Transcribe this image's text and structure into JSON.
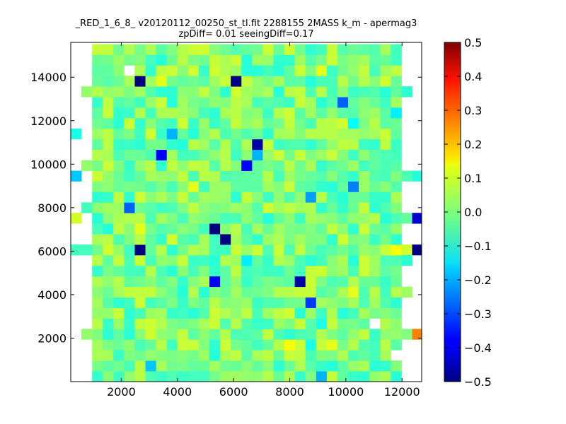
{
  "chart_data": {
    "type": "heatmap",
    "title": "_RED_1_6_8_ v20120112_00250_st_tl.fit 2288155 2MASS k_m - apermag3",
    "subtitle": "zpDiff= 0.01 seeingDiff=0.17",
    "xlabel": "",
    "ylabel": "",
    "xlim": [
      200,
      12700
    ],
    "ylim": [
      0,
      15600
    ],
    "xticks": [
      "2000",
      "4000",
      "6000",
      "8000",
      "10000",
      "12000"
    ],
    "yticks": [
      "2000",
      "4000",
      "6000",
      "8000",
      "10000",
      "12000",
      "14000"
    ],
    "colorbar": {
      "colormap": "jet",
      "range": [
        -0.5,
        0.5
      ],
      "ticks": [
        "0.5",
        "0.4",
        "0.3",
        "0.2",
        "0.1",
        "0.0",
        "−0.1",
        "−0.2",
        "−0.3",
        "−0.4",
        "−0.5"
      ]
    },
    "grid_spec": {
      "cols": 33,
      "rows": 32,
      "x_start": 200,
      "cell_w": 380,
      "cell_h": 485,
      "col_range_default": [
        2,
        30
      ],
      "missing_cells": [
        [
          29,
          5
        ],
        [
          2,
          30
        ],
        [
          5,
          28
        ]
      ]
    },
    "extra_cells": [
      {
        "row": 27,
        "col": 1,
        "value": 0.02
      },
      {
        "row": 27,
        "col": 31,
        "value": -0.08
      },
      {
        "row": 23,
        "col": 0,
        "value": -0.1
      },
      {
        "row": 23,
        "col": 30,
        "value": -0.03
      },
      {
        "row": 20,
        "col": 1,
        "value": 0.02
      },
      {
        "row": 20,
        "col": 30,
        "value": -0.04
      },
      {
        "row": 19,
        "col": 0,
        "value": -0.18
      },
      {
        "row": 19,
        "col": 30,
        "value": 0.0
      },
      {
        "row": 19,
        "col": 31,
        "value": -0.05
      },
      {
        "row": 19,
        "col": 32,
        "value": -0.09
      },
      {
        "row": 16,
        "col": 1,
        "value": -0.06
      },
      {
        "row": 15,
        "col": 0,
        "value": 0.08
      },
      {
        "row": 15,
        "col": 30,
        "value": -0.05
      },
      {
        "row": 15,
        "col": 31,
        "value": -0.03
      },
      {
        "row": 15,
        "col": 32,
        "value": -0.42
      },
      {
        "row": 12,
        "col": 0,
        "value": -0.06
      },
      {
        "row": 12,
        "col": 1,
        "value": -0.06
      },
      {
        "row": 12,
        "col": 30,
        "value": 0.12
      },
      {
        "row": 12,
        "col": 31,
        "value": 0.08
      },
      {
        "row": 12,
        "col": 32,
        "value": -0.5
      },
      {
        "row": 11,
        "col": 30,
        "value": -0.05
      },
      {
        "row": 11,
        "col": 31,
        "value": -0.08
      },
      {
        "row": 8,
        "col": 30,
        "value": 0.05
      },
      {
        "row": 8,
        "col": 31,
        "value": 0.03
      },
      {
        "row": 4,
        "col": 1,
        "value": 0.02
      },
      {
        "row": 4,
        "col": 30,
        "value": 0.02
      },
      {
        "row": 4,
        "col": 31,
        "value": 0.0
      },
      {
        "row": 4,
        "col": 32,
        "value": 0.25
      },
      {
        "row": 27,
        "col": 30,
        "value": -0.03
      }
    ],
    "notable_cells": [
      {
        "row": 28,
        "col": 6,
        "value": -0.5
      },
      {
        "row": 28,
        "col": 15,
        "value": -0.5
      },
      {
        "row": 26,
        "col": 25,
        "value": -0.28
      },
      {
        "row": 25,
        "col": 30,
        "value": -0.14
      },
      {
        "row": 23,
        "col": 9,
        "value": -0.2
      },
      {
        "row": 22,
        "col": 17,
        "value": -0.46
      },
      {
        "row": 21,
        "col": 17,
        "value": -0.2
      },
      {
        "row": 21,
        "col": 8,
        "value": -0.38
      },
      {
        "row": 20,
        "col": 16,
        "value": -0.38
      },
      {
        "row": 18,
        "col": 26,
        "value": -0.25
      },
      {
        "row": 17,
        "col": 22,
        "value": -0.22
      },
      {
        "row": 16,
        "col": 5,
        "value": -0.28
      },
      {
        "row": 14,
        "col": 13,
        "value": -0.5
      },
      {
        "row": 13,
        "col": 14,
        "value": -0.5
      },
      {
        "row": 12,
        "col": 6,
        "value": -0.5
      },
      {
        "row": 11,
        "col": 16,
        "value": -0.14
      },
      {
        "row": 9,
        "col": 13,
        "value": -0.38
      },
      {
        "row": 9,
        "col": 21,
        "value": -0.46
      },
      {
        "row": 7,
        "col": 22,
        "value": -0.32
      },
      {
        "row": 5,
        "col": 23,
        "value": -0.1
      },
      {
        "row": 3,
        "col": 22,
        "value": -0.1
      },
      {
        "row": 1,
        "col": 7,
        "value": -0.18
      },
      {
        "row": 0,
        "col": 23,
        "value": -0.2
      },
      {
        "row": 31,
        "col": 23,
        "value": -0.06
      },
      {
        "row": 29,
        "col": 23,
        "value": 0.1
      },
      {
        "row": 28,
        "col": 8,
        "value": 0.1
      },
      {
        "row": 16,
        "col": 18,
        "value": 0.08
      },
      {
        "row": 14,
        "col": 6,
        "value": 0.1
      },
      {
        "row": 13,
        "col": 9,
        "value": 0.08
      },
      {
        "row": 12,
        "col": 19,
        "value": 0.07
      },
      {
        "row": 8,
        "col": 26,
        "value": 0.1
      },
      {
        "row": 3,
        "col": 20,
        "value": 0.12
      },
      {
        "row": 3,
        "col": 24,
        "value": 0.1
      },
      {
        "row": 24,
        "col": 26,
        "value": -0.12
      },
      {
        "row": 18,
        "col": 11,
        "value": 0.1
      }
    ]
  }
}
